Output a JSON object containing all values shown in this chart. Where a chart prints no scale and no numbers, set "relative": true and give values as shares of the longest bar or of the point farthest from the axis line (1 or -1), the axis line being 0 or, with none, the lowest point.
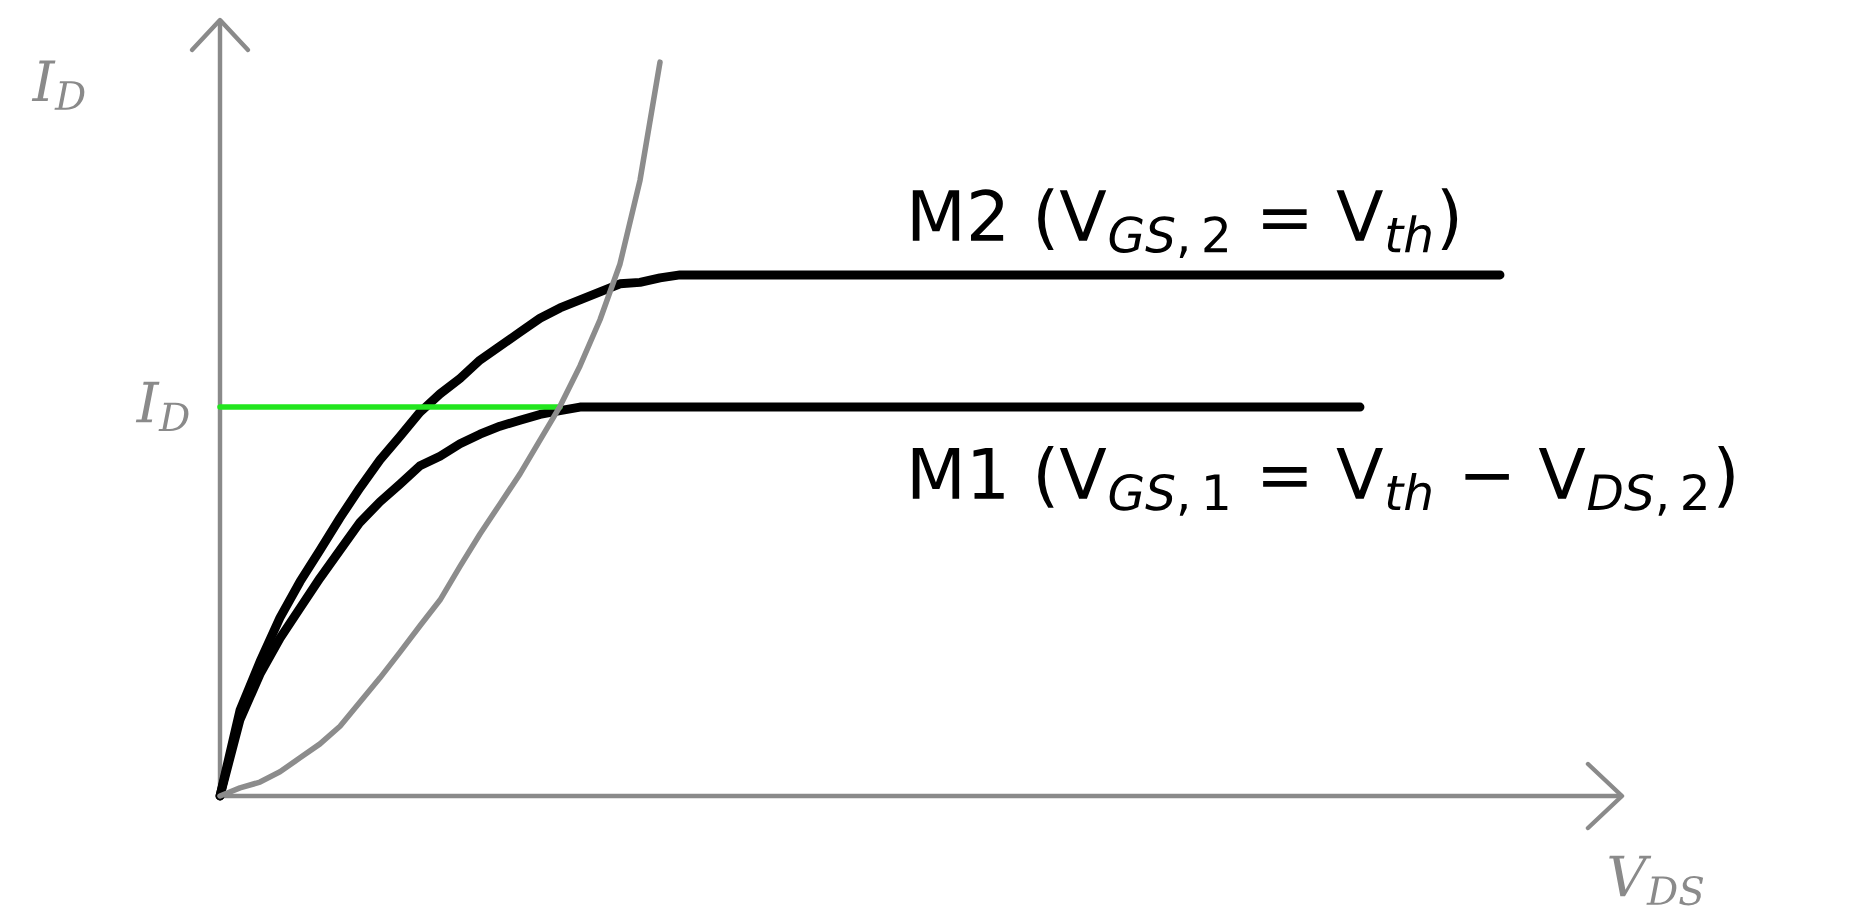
{
  "chart_data": {
    "type": "line",
    "relative": true,
    "tick_labels": false,
    "xlabel": "V$_{DS}$",
    "ylabel": "I$_{D}$",
    "categories": [
      null,
      null,
      null,
      null,
      null,
      null,
      null,
      null,
      null,
      null,
      null,
      null,
      null,
      null,
      null,
      null,
      null,
      null,
      null,
      null,
      null,
      null,
      null,
      null,
      null,
      null,
      null,
      null,
      null,
      null,
      null,
      null,
      null,
      null,
      null,
      null,
      null,
      null,
      null,
      null,
      null,
      null,
      null,
      null,
      null,
      null,
      null,
      null,
      null,
      null,
      null,
      null,
      null,
      null,
      null,
      null,
      null,
      null,
      null,
      null,
      null,
      null,
      null,
      null,
      null,
      null,
      null,
      null,
      null,
      null,
      null
    ],
    "series": [
      {
        "name": "M2 (V$_{GS,2}$ = V$_{th}$)",
        "color": "#000000",
        "values": [
          0,
          0.117,
          0.183,
          0.243,
          0.292,
          0.335,
          0.379,
          0.42,
          0.458,
          0.49,
          0.523,
          0.548,
          0.569,
          0.594,
          0.613,
          0.632,
          0.651,
          0.665,
          0.676,
          0.687,
          0.698,
          0.7,
          0.706,
          0.71,
          0.71,
          0.71,
          0.71,
          0.71,
          0.71,
          0.71,
          0.71,
          0.71,
          0.71,
          0.71,
          0.71,
          0.71,
          0.71,
          0.71,
          0.71,
          0.71,
          0.71,
          0.71,
          0.71,
          0.71,
          0.71,
          0.71,
          0.71,
          0.71,
          0.71,
          0.71,
          0.71,
          0.71,
          0.71,
          0.71,
          0.71,
          0.71,
          0.71,
          0.71,
          0.71,
          0.71,
          0.71,
          0.71,
          0.71,
          0.71,
          0.71,
          null,
          null,
          null,
          null,
          null,
          null
        ]
      },
      {
        "name": "M1 (V$_{GS,1}$ = V$_{th}$ − V$_{DS,2}$)",
        "color": "#000000",
        "values": [
          0,
          0.104,
          0.166,
          0.215,
          0.256,
          0.297,
          0.335,
          0.373,
          0.401,
          0.425,
          0.45,
          0.463,
          0.48,
          0.493,
          0.504,
          0.512,
          0.52,
          0.525,
          0.53,
          0.53,
          0.53,
          0.53,
          0.53,
          0.53,
          0.53,
          0.53,
          0.53,
          0.53,
          0.53,
          0.53,
          0.53,
          0.53,
          0.53,
          0.53,
          0.53,
          0.53,
          0.53,
          0.53,
          0.53,
          0.53,
          0.53,
          0.53,
          0.53,
          0.53,
          0.53,
          0.53,
          0.53,
          0.53,
          0.53,
          0.53,
          0.53,
          0.53,
          0.53,
          0.53,
          0.53,
          0.53,
          0.53,
          0.53,
          null,
          null,
          null,
          null,
          null,
          null,
          null,
          null,
          null,
          null,
          null,
          null,
          null
        ]
      },
      {
        "name": "I$_{D}$",
        "color": "#22e61e",
        "values": [
          0.53,
          0.53,
          0.53,
          0.53,
          0.53,
          0.53,
          0.53,
          0.53,
          0.53,
          0.53,
          0.53,
          0.53,
          0.53,
          0.53,
          0.53,
          0.53,
          0.53,
          0.53,
          null,
          null,
          null,
          null,
          null,
          null,
          null,
          null,
          null,
          null,
          null,
          null,
          null,
          null,
          null,
          null,
          null,
          null,
          null,
          null,
          null,
          null,
          null,
          null,
          null,
          null,
          null,
          null,
          null,
          null,
          null,
          null,
          null,
          null,
          null,
          null,
          null,
          null,
          null,
          null,
          null,
          null,
          null,
          null,
          null,
          null,
          null,
          null,
          null,
          null,
          null,
          null,
          null
        ]
      },
      {
        "color": "#8c8c8c",
        "values": [
          0,
          0.011,
          0.019,
          0.033,
          0.052,
          0.071,
          0.095,
          0.128,
          0.161,
          0.196,
          0.232,
          0.267,
          0.313,
          0.357,
          0.398,
          0.439,
          0.485,
          0.531,
          0.586,
          0.649,
          0.725,
          0.839,
          1,
          null,
          null,
          null,
          null,
          null,
          null,
          null,
          null,
          null,
          null,
          null,
          null,
          null,
          null,
          null,
          null,
          null,
          null,
          null,
          null,
          null,
          null,
          null,
          null,
          null,
          null,
          null,
          null,
          null,
          null,
          null,
          null,
          null,
          null,
          null,
          null,
          null,
          null,
          null,
          null,
          null,
          null,
          null,
          null,
          null,
          null,
          null,
          null
        ]
      }
    ]
  }
}
